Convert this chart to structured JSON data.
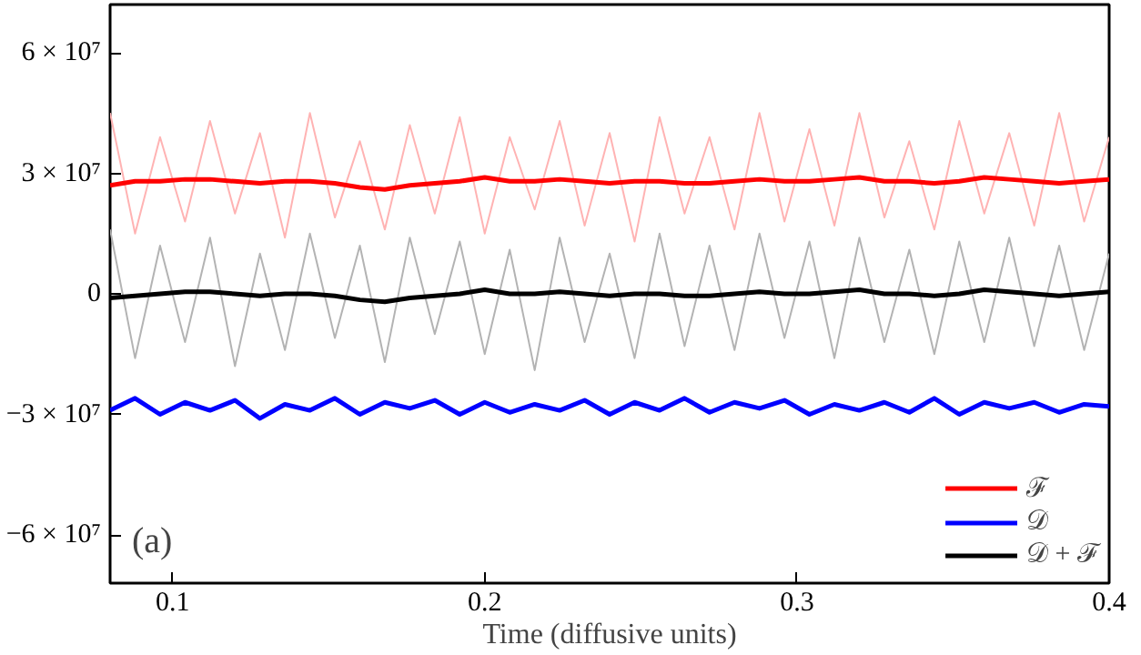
{
  "chart_data": {
    "type": "line",
    "xlabel": "Time (diffusive units)",
    "x": [
      0.08,
      0.088,
      0.096,
      0.104,
      0.112,
      0.12,
      0.128,
      0.136,
      0.144,
      0.152,
      0.16,
      0.168,
      0.176,
      0.184,
      0.192,
      0.2,
      0.208,
      0.216,
      0.224,
      0.232,
      0.24,
      0.248,
      0.256,
      0.264,
      0.272,
      0.28,
      0.288,
      0.296,
      0.304,
      0.312,
      0.32,
      0.328,
      0.336,
      0.344,
      0.352,
      0.36,
      0.368,
      0.376,
      0.384,
      0.392,
      0.4
    ],
    "series": [
      {
        "color": "#ffb3b3",
        "values": [
          45000000.0,
          15000000.0,
          39000000.0,
          18000000.0,
          43000000.0,
          20000000.0,
          40000000.0,
          14000000.0,
          45000000.0,
          19000000.0,
          38000000.0,
          16000000.0,
          42000000.0,
          20000000.0,
          44000000.0,
          15000000.0,
          39000000.0,
          21000000.0,
          43000000.0,
          17000000.0,
          40000000.0,
          13000000.0,
          44000000.0,
          20000000.0,
          39000000.0,
          16000000.0,
          45000000.0,
          18000000.0,
          41000000.0,
          17000000.0,
          45000000.0,
          19000000.0,
          38000000.0,
          16000000.0,
          43000000.0,
          20000000.0,
          40000000.0,
          17000000.0,
          45000000.0,
          18000000.0,
          39000000.0
        ]
      },
      {
        "color": "#b3b3b3",
        "values": [
          16000000.0,
          -16000000.0,
          12000000.0,
          -12000000.0,
          14000000.0,
          -18000000.0,
          10000000.0,
          -14000000.0,
          15000000.0,
          -11000000.0,
          12000000.0,
          -17000000.0,
          14000000.0,
          -10000000.0,
          13000000.0,
          -15000000.0,
          11000000.0,
          -19000000.0,
          14000000.0,
          -12000000.0,
          10000000.0,
          -16000000.0,
          15000000.0,
          -13000000.0,
          12000000.0,
          -14000000.0,
          15000000.0,
          -11000000.0,
          13000000.0,
          -16000000.0,
          14000000.0,
          -12000000.0,
          11000000.0,
          -15000000.0,
          13000000.0,
          -12000000.0,
          14000000.0,
          -13000000.0,
          12000000.0,
          -14000000.0,
          10000000.0
        ]
      },
      {
        "name": "ℱ",
        "color": "#ff0000",
        "values": [
          27000000.0,
          28000000.0,
          28000000.0,
          28500000.0,
          28500000.0,
          28000000.0,
          27500000.0,
          28000000.0,
          28000000.0,
          27500000.0,
          26500000.0,
          26000000.0,
          27000000.0,
          27500000.0,
          28000000.0,
          29000000.0,
          28000000.0,
          28000000.0,
          28500000.0,
          28000000.0,
          27500000.0,
          28000000.0,
          28000000.0,
          27500000.0,
          27500000.0,
          28000000.0,
          28500000.0,
          28000000.0,
          28000000.0,
          28500000.0,
          29000000.0,
          28000000.0,
          28000000.0,
          27500000.0,
          28000000.0,
          29000000.0,
          28500000.0,
          28000000.0,
          27500000.0,
          28000000.0,
          28500000.0
        ]
      },
      {
        "name": "𝒟",
        "color": "#0000ff",
        "values": [
          -29000000.0,
          -26000000.0,
          -30000000.0,
          -27000000.0,
          -29000000.0,
          -26500000.0,
          -31000000.0,
          -27500000.0,
          -29000000.0,
          -26000000.0,
          -30000000.0,
          -27000000.0,
          -28500000.0,
          -26500000.0,
          -30000000.0,
          -27000000.0,
          -29500000.0,
          -27500000.0,
          -29000000.0,
          -26500000.0,
          -30000000.0,
          -27000000.0,
          -29000000.0,
          -26000000.0,
          -29500000.0,
          -27000000.0,
          -28500000.0,
          -26500000.0,
          -30000000.0,
          -27500000.0,
          -29000000.0,
          -27000000.0,
          -29500000.0,
          -26000000.0,
          -30000000.0,
          -27000000.0,
          -28500000.0,
          -27000000.0,
          -29500000.0,
          -27500000.0,
          -28000000.0
        ]
      },
      {
        "name": "𝒟 + ℱ",
        "color": "#000000",
        "values": [
          -1000000.0,
          -500000.0,
          0,
          500000.0,
          500000.0,
          0,
          -500000.0,
          0,
          0,
          -500000.0,
          -1500000.0,
          -2000000.0,
          -1000000.0,
          -500000.0,
          0,
          1000000.0,
          0,
          0,
          500000.0,
          0,
          -500000.0,
          0,
          0,
          -500000.0,
          -500000.0,
          0,
          500000.0,
          0,
          0,
          500000.0,
          1000000.0,
          0,
          0,
          -500000.0,
          0,
          1000000.0,
          500000.0,
          0,
          -500000.0,
          0,
          500000.0
        ]
      }
    ],
    "xlim": [
      0.08,
      0.4
    ],
    "xticks": [
      0.1,
      0.2,
      0.3,
      0.4
    ],
    "ylim": [
      -72000000.0,
      72000000.0
    ],
    "yticks": [
      {
        "value": -60000000.0,
        "label": "−6 × 10⁷"
      },
      {
        "value": -30000000.0,
        "label": "−3 × 10⁷"
      },
      0,
      {
        "value": 30000000.0,
        "label": "3 × 10⁷"
      },
      {
        "value": 60000000.0,
        "label": "6 × 10⁷"
      }
    ],
    "annotations": [
      "(a)"
    ],
    "legend": "bottom right",
    "grid": false,
    "marker": "none",
    "line_style": "solid"
  }
}
